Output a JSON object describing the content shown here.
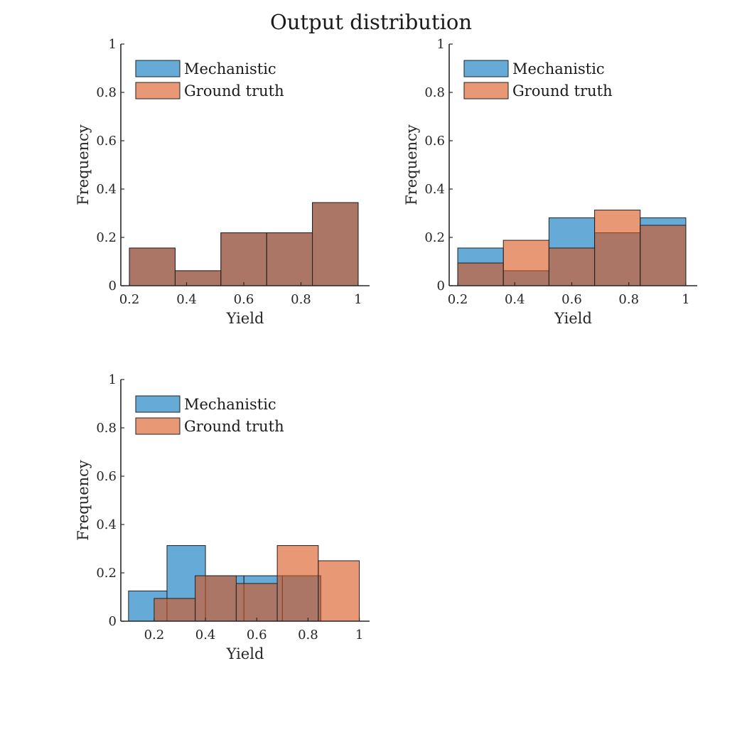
{
  "figure_title": "Output distribution",
  "chart_data": [
    {
      "type": "bar",
      "subtype": "histogram",
      "xlabel": "Yield",
      "ylabel": "Frequency",
      "xlim": [
        0.17,
        1.04
      ],
      "ylim": [
        0,
        1
      ],
      "xticks": [
        "0.2",
        "0.4",
        "0.6",
        "0.8",
        "1"
      ],
      "yticks": [
        "0",
        "0.2",
        "0.4",
        "0.6",
        "0.8",
        "1"
      ],
      "legend": "top-left",
      "series": [
        {
          "name": "Mechanistic",
          "color": "#0072BD",
          "bins": [
            [
              0.2,
              0.36,
              0.156
            ],
            [
              0.36,
              0.52,
              0.062
            ],
            [
              0.52,
              0.68,
              0.219
            ],
            [
              0.68,
              0.84,
              0.219
            ],
            [
              0.84,
              1.0,
              0.344
            ]
          ]
        },
        {
          "name": "Ground truth",
          "color": "#D95319",
          "bins": [
            [
              0.2,
              0.36,
              0.156
            ],
            [
              0.36,
              0.52,
              0.062
            ],
            [
              0.52,
              0.68,
              0.219
            ],
            [
              0.68,
              0.84,
              0.219
            ],
            [
              0.84,
              1.0,
              0.344
            ]
          ]
        }
      ]
    },
    {
      "type": "bar",
      "subtype": "histogram",
      "xlabel": "Yield",
      "ylabel": "Frequency",
      "xlim": [
        0.17,
        1.04
      ],
      "ylim": [
        0,
        1
      ],
      "xticks": [
        "0.2",
        "0.4",
        "0.6",
        "0.8",
        "1"
      ],
      "yticks": [
        "0",
        "0.2",
        "0.4",
        "0.6",
        "0.8",
        "1"
      ],
      "legend": "top-left",
      "series": [
        {
          "name": "Mechanistic",
          "color": "#0072BD",
          "bins": [
            [
              0.2,
              0.36,
              0.156
            ],
            [
              0.36,
              0.52,
              0.062
            ],
            [
              0.52,
              0.68,
              0.281
            ],
            [
              0.68,
              0.84,
              0.219
            ],
            [
              0.84,
              1.0,
              0.281
            ]
          ]
        },
        {
          "name": "Ground truth",
          "color": "#D95319",
          "bins": [
            [
              0.2,
              0.36,
              0.094
            ],
            [
              0.36,
              0.52,
              0.188
            ],
            [
              0.52,
              0.68,
              0.156
            ],
            [
              0.68,
              0.84,
              0.313
            ],
            [
              0.84,
              1.0,
              0.25
            ]
          ]
        }
      ]
    },
    {
      "type": "bar",
      "subtype": "histogram",
      "xlabel": "Yield",
      "ylabel": "Frequency",
      "xlim": [
        0.07,
        1.04
      ],
      "ylim": [
        0,
        1
      ],
      "xticks": [
        "0.2",
        "0.4",
        "0.6",
        "0.8",
        "1"
      ],
      "yticks": [
        "0",
        "0.2",
        "0.4",
        "0.6",
        "0.8",
        "1"
      ],
      "legend": "top-left",
      "series": [
        {
          "name": "Mechanistic",
          "color": "#0072BD",
          "bins": [
            [
              0.1,
              0.25,
              0.125
            ],
            [
              0.25,
              0.4,
              0.313
            ],
            [
              0.4,
              0.55,
              0.188
            ],
            [
              0.55,
              0.7,
              0.188
            ],
            [
              0.7,
              0.85,
              0.188
            ]
          ]
        },
        {
          "name": "Ground truth",
          "color": "#D95319",
          "bins": [
            [
              0.2,
              0.36,
              0.094
            ],
            [
              0.36,
              0.52,
              0.188
            ],
            [
              0.52,
              0.68,
              0.156
            ],
            [
              0.68,
              0.84,
              0.313
            ],
            [
              0.84,
              1.0,
              0.25
            ]
          ]
        }
      ]
    }
  ]
}
